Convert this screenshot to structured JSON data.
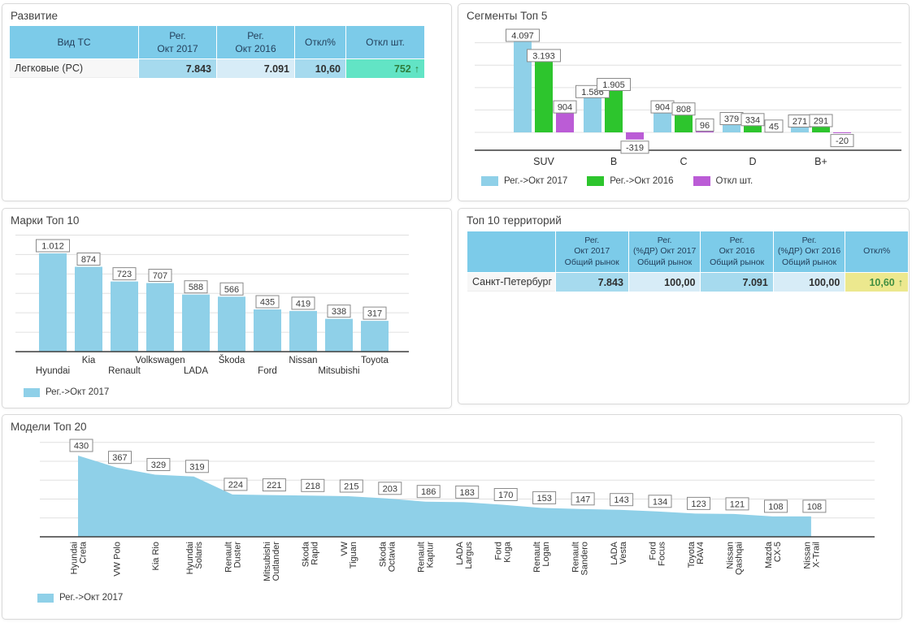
{
  "colors": {
    "series_blue_2017": "#8FD0E8",
    "series_green_2016": "#2DC52D",
    "series_purple_otkl": "#BB5CD6",
    "table_header_bg": "#7CCBE9",
    "cell_blue": "#A6DAEE",
    "cell_light_blue": "#D7ECF7",
    "cell_teal": "#62E4C5",
    "cell_yellow": "#ECE88E",
    "positive_green_text": "#2E7D3C",
    "gridline": "#e0e0e0",
    "axis": "#3c3c3c"
  },
  "chart_data": [
    {
      "id": "development",
      "type": "table",
      "title": "Развитие",
      "columns": [
        [
          "Вид ТС"
        ],
        [
          "Рег.",
          "Окт 2017"
        ],
        [
          "Рег.",
          "Окт 2016"
        ],
        [
          "Откл%"
        ],
        [
          "Откл шт."
        ]
      ],
      "rows": [
        {
          "name": "Легковые (PC)",
          "cells": [
            {
              "text": "7.843",
              "style": "blue"
            },
            {
              "text": "7.091",
              "style": "lightblue"
            },
            {
              "text": "10,60",
              "style": "blue"
            },
            {
              "text": "752",
              "style": "teal",
              "arrow": "up"
            }
          ]
        }
      ]
    },
    {
      "id": "segments",
      "type": "bar",
      "title": "Сегменты Топ 5",
      "categories": [
        "SUV",
        "B",
        "C",
        "D",
        "B+"
      ],
      "series": [
        {
          "name": "Рег.->Окт 2017",
          "color": "#8FD0E8",
          "values": [
            4097,
            1586,
            904,
            379,
            271
          ],
          "labels": [
            "4.097",
            "1.586",
            "904",
            "379",
            "271"
          ]
        },
        {
          "name": "Рег.->Окт 2016",
          "color": "#2DC52D",
          "values": [
            3193,
            1905,
            808,
            334,
            291
          ],
          "labels": [
            "3.193",
            "1.905",
            "808",
            "334",
            "291"
          ]
        },
        {
          "name": "Откл шт.",
          "color": "#BB5CD6",
          "values": [
            904,
            -319,
            96,
            45,
            -20
          ],
          "labels": [
            "904",
            "-319",
            "96",
            "45",
            "-20"
          ]
        }
      ],
      "ylim": [
        -1000,
        4500
      ],
      "grid": true,
      "legend_position": "bottom"
    },
    {
      "id": "brands",
      "type": "bar",
      "title": "Марки Топ 10",
      "categories": [
        "Hyundai",
        "Kia",
        "Renault",
        "Volkswagen",
        "LADA",
        "Škoda",
        "Ford",
        "Nissan",
        "Mitsubishi",
        "Toyota"
      ],
      "series": [
        {
          "name": "Рег.->Окт 2017",
          "color": "#8FD0E8",
          "values": [
            1012,
            874,
            723,
            707,
            588,
            566,
            435,
            419,
            338,
            317
          ],
          "labels": [
            "1.012",
            "874",
            "723",
            "707",
            "588",
            "566",
            "435",
            "419",
            "338",
            "317"
          ]
        }
      ],
      "ylim": [
        0,
        1200
      ],
      "grid": true,
      "legend_position": "bottom"
    },
    {
      "id": "territories",
      "type": "table",
      "title": "Топ 10 территорий",
      "columns": [
        [
          ""
        ],
        [
          "Рег.",
          "Окт 2017",
          "Общий рынок"
        ],
        [
          "Рег.",
          "(%ДР) Окт 2017",
          "Общий рынок"
        ],
        [
          "Рег.",
          "Окт 2016",
          "Общий рынок"
        ],
        [
          "Рег.",
          "(%ДР) Окт 2016",
          "Общий рынок"
        ],
        [
          "Откл%"
        ]
      ],
      "rows": [
        {
          "name": "Санкт-Петербург",
          "cells": [
            {
              "text": "7.843",
              "style": "blue"
            },
            {
              "text": "100,00",
              "style": "lightblue"
            },
            {
              "text": "7.091",
              "style": "blue"
            },
            {
              "text": "100,00",
              "style": "lightblue"
            },
            {
              "text": "10,60",
              "style": "yellow",
              "arrow": "up"
            }
          ]
        }
      ]
    },
    {
      "id": "models",
      "type": "area",
      "title": "Модели Топ 20",
      "categories": [
        [
          "Hyundai",
          "Creta"
        ],
        [
          "VW Polo"
        ],
        [
          "Kia Rio"
        ],
        [
          "Hyundai",
          "Solaris"
        ],
        [
          "Renault",
          "Duster"
        ],
        [
          "Mitsubishi",
          "Outlander"
        ],
        [
          "Skoda",
          "Rapid"
        ],
        [
          "VW",
          "Tiguan"
        ],
        [
          "Skoda",
          "Octavia"
        ],
        [
          "Renault",
          "Kaptur"
        ],
        [
          "LADA",
          "Largus"
        ],
        [
          "Ford",
          "Kuga"
        ],
        [
          "Renault",
          "Logan"
        ],
        [
          "Renault",
          "Sandero"
        ],
        [
          "LADA",
          "Vesta"
        ],
        [
          "Ford",
          "Focus"
        ],
        [
          "Toyota",
          "RAV4"
        ],
        [
          "Nissan",
          "Qashqai"
        ],
        [
          "Mazda",
          "CX-5"
        ],
        [
          "Nissan",
          "X-Trail"
        ]
      ],
      "series": [
        {
          "name": "Рег.->Окт 2017",
          "color": "#8FD0E8",
          "values": [
            430,
            367,
            329,
            319,
            224,
            221,
            218,
            215,
            203,
            186,
            183,
            170,
            153,
            147,
            143,
            134,
            123,
            121,
            108,
            108
          ],
          "labels": [
            "430",
            "367",
            "329",
            "319",
            "224",
            "221",
            "218",
            "215",
            "203",
            "186",
            "183",
            "170",
            "153",
            "147",
            "143",
            "134",
            "123",
            "121",
            "108",
            "108"
          ]
        }
      ],
      "ylim": [
        0,
        550
      ],
      "grid": true,
      "legend_position": "bottom"
    }
  ]
}
